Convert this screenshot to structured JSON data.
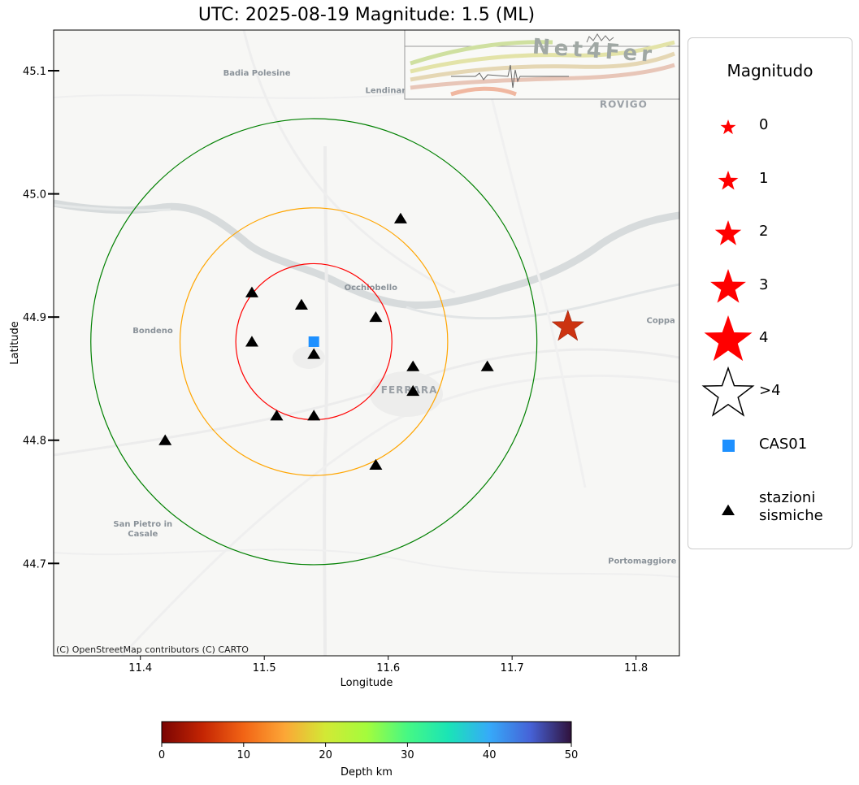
{
  "title": "UTC: 2025-08-19 Magnitude: 1.5 (ML)",
  "axes": {
    "xlabel": "Longitude",
    "ylabel": "Latitude",
    "xlim": [
      11.33,
      11.835
    ],
    "ylim": [
      44.625,
      45.133
    ],
    "xticks": [
      11.4,
      11.5,
      11.6,
      11.7,
      11.8
    ],
    "xtick_labels": [
      "11.4",
      "11.5",
      "11.6",
      "11.7",
      "11.8"
    ],
    "yticks": [
      44.7,
      44.8,
      44.9,
      45.0,
      45.1
    ],
    "ytick_labels": [
      "44.7",
      "44.8",
      "44.9",
      "45.0",
      "45.1"
    ]
  },
  "basemap": {
    "attribution": "(C) OpenStreetMap contributors (C) CARTO",
    "places": [
      {
        "name": "Badia Polesine",
        "lon": 11.494,
        "lat": 45.096
      },
      {
        "name": "Lendinara",
        "lon": 11.6,
        "lat": 45.082
      },
      {
        "name": "ROVIGO",
        "lon": 11.79,
        "lat": 45.07
      },
      {
        "name": "Occhiobello",
        "lon": 11.586,
        "lat": 44.922
      },
      {
        "name": "Bondeno",
        "lon": 11.41,
        "lat": 44.887
      },
      {
        "name": "FERRARA",
        "lon": 11.617,
        "lat": 44.838
      },
      {
        "name": "Coppa",
        "lon": 11.82,
        "lat": 44.895
      },
      {
        "name": "San Pietro in",
        "lon": 11.402,
        "lat": 44.73
      },
      {
        "name": "Casale",
        "lon": 11.402,
        "lat": 44.722
      },
      {
        "name": "Portomaggiore",
        "lon": 11.805,
        "lat": 44.7
      }
    ]
  },
  "logo": {
    "text": "Net4Fer"
  },
  "chart_data": {
    "type": "scatter",
    "title": "UTC: 2025-08-19 Magnitude: 1.5 (ML)",
    "xlabel": "Longitude",
    "ylabel": "Latitude",
    "xlim": [
      11.33,
      11.835
    ],
    "ylim": [
      44.625,
      45.133
    ],
    "center": {
      "name": "CAS01",
      "lon": 11.54,
      "lat": 44.88,
      "color": "#1e90ff"
    },
    "circles": [
      {
        "radius_deg": 0.063,
        "color": "#ff0000"
      },
      {
        "radius_deg": 0.108,
        "color": "#ffa500"
      },
      {
        "radius_deg": 0.18,
        "color": "#008000"
      }
    ],
    "stations": [
      {
        "lon": 11.61,
        "lat": 44.98
      },
      {
        "lon": 11.49,
        "lat": 44.92
      },
      {
        "lon": 11.53,
        "lat": 44.91
      },
      {
        "lon": 11.59,
        "lat": 44.9
      },
      {
        "lon": 11.49,
        "lat": 44.88
      },
      {
        "lon": 11.54,
        "lat": 44.87
      },
      {
        "lon": 11.62,
        "lat": 44.86
      },
      {
        "lon": 11.68,
        "lat": 44.86
      },
      {
        "lon": 11.62,
        "lat": 44.84
      },
      {
        "lon": 11.51,
        "lat": 44.82
      },
      {
        "lon": 11.54,
        "lat": 44.82
      },
      {
        "lon": 11.42,
        "lat": 44.8
      },
      {
        "lon": 11.59,
        "lat": 44.78
      }
    ],
    "event": {
      "lon": 11.745,
      "lat": 44.892,
      "magnitude": 1.5,
      "depth_km": 5,
      "color": "#cc3311"
    }
  },
  "legend": {
    "title": "Magnitudo",
    "items": [
      {
        "label": "0",
        "symbol": "star",
        "magnitude": 0
      },
      {
        "label": "1",
        "symbol": "star",
        "magnitude": 1
      },
      {
        "label": "2",
        "symbol": "star",
        "magnitude": 2
      },
      {
        "label": "3",
        "symbol": "star",
        "magnitude": 3
      },
      {
        "label": "4",
        "symbol": "star",
        "magnitude": 4
      },
      {
        "label": ">4",
        "symbol": "star-outline",
        "magnitude": 5
      },
      {
        "label": "CAS01",
        "symbol": "square"
      },
      {
        "label": "stazioni\nsismiche",
        "symbol": "triangle"
      }
    ]
  },
  "colorbar": {
    "label": "Depth km",
    "min": 0,
    "max": 50,
    "ticks": [
      0,
      10,
      20,
      30,
      40,
      50
    ],
    "tick_labels": [
      "0",
      "10",
      "20",
      "30",
      "40",
      "50"
    ],
    "colormap": "turbo_r"
  }
}
